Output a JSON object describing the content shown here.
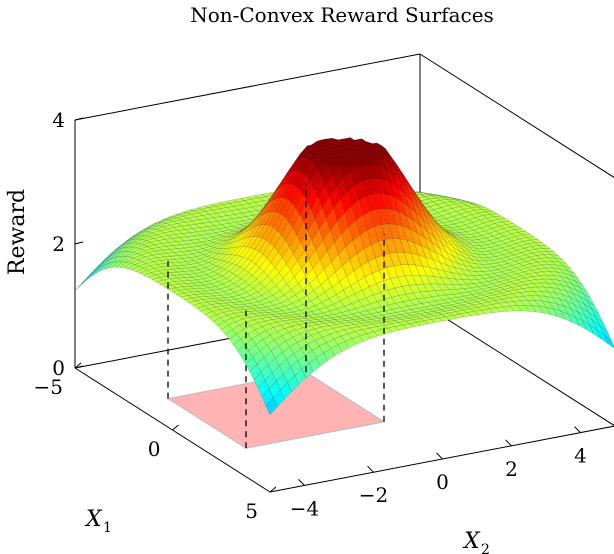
{
  "chart_data": {
    "type": "surface3d",
    "title": "Non-Convex Reward Surfaces",
    "zlabel": "Reward",
    "xlabel": {
      "main": "X",
      "sub": "1"
    },
    "ylabel": {
      "main": "X",
      "sub": "2"
    },
    "xlim": [
      -5,
      5
    ],
    "ylim": [
      -5,
      5
    ],
    "zlim": [
      0,
      4
    ],
    "x_ticks": [
      "−5",
      "0",
      "5"
    ],
    "y_ticks": [
      "−4",
      "−2",
      "0",
      "2",
      "4"
    ],
    "z_ticks": [
      "0",
      "2",
      "4"
    ],
    "colormap": "jet",
    "surface_function": "exp(-(x^2+y^2)/30) * (3.6 + 0.6*cos(r^2/5)) ... rendered surface",
    "highlight_region": {
      "x1_range": [
        -2,
        2
      ],
      "x2_range": [
        -4,
        0
      ],
      "color": "#ffb3b3"
    }
  }
}
